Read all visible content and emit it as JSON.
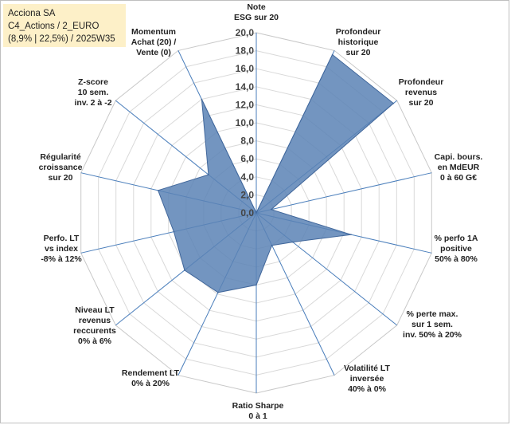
{
  "title": {
    "line1": "Acciona SA",
    "line2": "C4_Actions / 2_EURO",
    "line3": "(8,9% | 22,5%) / 2025W35"
  },
  "chart_data": {
    "type": "radar",
    "scale": {
      "min": 0,
      "max": 20,
      "step": 2
    },
    "tick_labels": [
      "0,0",
      "2,0",
      "4,0",
      "6,0",
      "8,0",
      "10,0",
      "12,0",
      "14,0",
      "16,0",
      "18,0",
      "20,0"
    ],
    "axes": [
      {
        "label": [
          "Note",
          "ESG sur 20"
        ],
        "value": 0
      },
      {
        "label": [
          "Profondeur",
          "historique",
          "sur 20"
        ],
        "value": 19.5
      },
      {
        "label": [
          "Profondeur",
          "revenus",
          "sur 20"
        ],
        "value": 19.5
      },
      {
        "label": [
          "Capi. bours.",
          "en MdEUR",
          "0 à 60 G€"
        ],
        "value": 1.7
      },
      {
        "label": [
          "% perfo 1A",
          "positive",
          "50% à 80%"
        ],
        "value": 10.8
      },
      {
        "label": [
          "% perte max.",
          "sur 1 sem.",
          "inv. 50% à 20%"
        ],
        "value": 5.2
      },
      {
        "label": [
          "Volatilité LT",
          "inversée",
          "40% à 0%"
        ],
        "value": 4.0
      },
      {
        "label": [
          "Ratio Sharpe",
          "0 à 1"
        ],
        "value": 8.0
      },
      {
        "label": [
          "Rendement LT",
          "0% à 20%"
        ],
        "value": 9.8
      },
      {
        "label": [
          "Niveau LT",
          "revenus",
          "reccurents",
          "0% à 6%"
        ],
        "value": 10.2
      },
      {
        "label": [
          "Perfo. LT",
          "vs index",
          "-8% à 12%"
        ],
        "value": 9.4
      },
      {
        "label": [
          "Régularité",
          "croissance",
          "sur 20"
        ],
        "value": 11.2
      },
      {
        "label": [
          "Z-score",
          "10 sem.",
          "inv. 2 à -2"
        ],
        "value": 6.8
      },
      {
        "label": [
          "Momentum",
          "Achat (20) /",
          "Vente (0)"
        ],
        "value": 14.0
      }
    ]
  }
}
